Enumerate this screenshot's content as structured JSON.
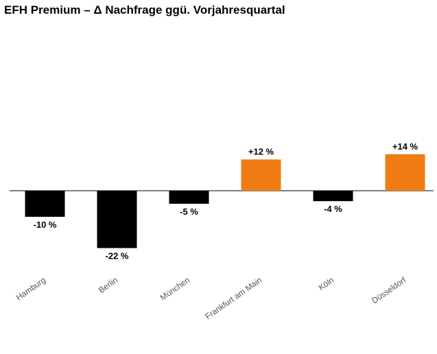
{
  "chart_data": {
    "type": "bar",
    "title": "EFH Premium – Δ Nachfrage ggü. Vorjahresquartal",
    "categories": [
      "Hamburg",
      "Berlin",
      "München",
      "Frankfurt am Main",
      "Köln",
      "Düsseldorf"
    ],
    "values": [
      -10,
      -22,
      -5,
      12,
      -4,
      14
    ],
    "data_labels": [
      "-10 %",
      "-22 %",
      "-5 %",
      "+12 %",
      "-4 %",
      "+14 %"
    ],
    "colors": {
      "negative": "#000000",
      "positive": "#f07d14",
      "axis": "#555555"
    },
    "ylim": [
      -22,
      14
    ],
    "grid": false,
    "legend": "none"
  }
}
